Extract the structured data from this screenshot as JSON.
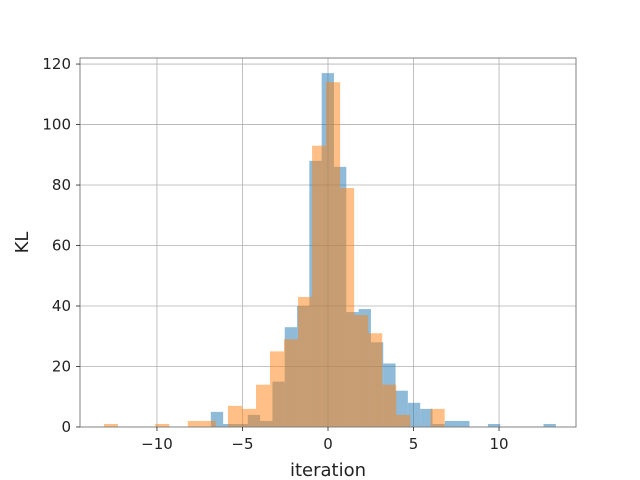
{
  "chart_data": {
    "type": "histogram",
    "xlabel": "iteration",
    "ylabel": "KL",
    "xlim": [
      -14.5,
      14.5
    ],
    "ylim": [
      0,
      122
    ],
    "grid": true,
    "legend": "none",
    "xticks": [
      -10,
      -5,
      0,
      5,
      10
    ],
    "xtick_labels": [
      "−10",
      "−5",
      "0",
      "5",
      "10"
    ],
    "yticks": [
      0,
      20,
      40,
      60,
      80,
      100,
      120
    ],
    "ytick_labels": [
      "0",
      "20",
      "40",
      "60",
      "80",
      "100",
      "120"
    ],
    "series": [
      {
        "color": "#1f77b4",
        "opacity": 0.5,
        "bin_width": 0.72,
        "bins": [
          {
            "x0": -6.85,
            "v": 5
          },
          {
            "x0": -6.13,
            "v": 1
          },
          {
            "x0": -5.41,
            "v": 1
          },
          {
            "x0": -4.69,
            "v": 4
          },
          {
            "x0": -3.97,
            "v": 2
          },
          {
            "x0": -3.25,
            "v": 15
          },
          {
            "x0": -2.53,
            "v": 33
          },
          {
            "x0": -1.81,
            "v": 40
          },
          {
            "x0": -1.09,
            "v": 88
          },
          {
            "x0": -0.37,
            "v": 117
          },
          {
            "x0": 0.35,
            "v": 86
          },
          {
            "x0": 1.07,
            "v": 38
          },
          {
            "x0": 1.79,
            "v": 39
          },
          {
            "x0": 2.51,
            "v": 28
          },
          {
            "x0": 3.23,
            "v": 21
          },
          {
            "x0": 3.95,
            "v": 12
          },
          {
            "x0": 4.67,
            "v": 8
          },
          {
            "x0": 5.39,
            "v": 6
          },
          {
            "x0": 6.11,
            "v": 1
          },
          {
            "x0": 6.83,
            "v": 2
          },
          {
            "x0": 7.55,
            "v": 2
          },
          {
            "x0": 9.35,
            "v": 1
          },
          {
            "x0": 12.6,
            "v": 1
          }
        ]
      },
      {
        "color": "#ff7f0e",
        "opacity": 0.5,
        "bin_width": 0.82,
        "bins": [
          {
            "x0": -13.1,
            "v": 1
          },
          {
            "x0": -10.1,
            "v": 1
          },
          {
            "x0": -8.2,
            "v": 2
          },
          {
            "x0": -7.38,
            "v": 2
          },
          {
            "x0": -5.85,
            "v": 7
          },
          {
            "x0": -5.03,
            "v": 6
          },
          {
            "x0": -4.21,
            "v": 14
          },
          {
            "x0": -3.39,
            "v": 25
          },
          {
            "x0": -2.57,
            "v": 29
          },
          {
            "x0": -1.75,
            "v": 43
          },
          {
            "x0": -0.93,
            "v": 93
          },
          {
            "x0": -0.11,
            "v": 114
          },
          {
            "x0": 0.71,
            "v": 79
          },
          {
            "x0": 1.53,
            "v": 37
          },
          {
            "x0": 2.35,
            "v": 31
          },
          {
            "x0": 3.17,
            "v": 14
          },
          {
            "x0": 3.99,
            "v": 4
          },
          {
            "x0": 6.0,
            "v": 6
          }
        ]
      }
    ]
  }
}
